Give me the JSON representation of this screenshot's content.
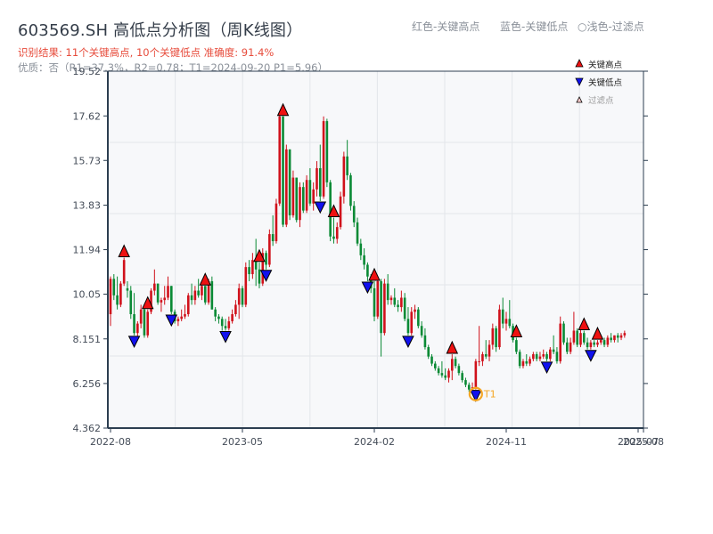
{
  "header": {
    "title": "603569.SH 高低点分析图（周K线图）",
    "result_line": "识别结果: 11个关键高点, 10个关键低点  准确度: 91.4%",
    "quality_line": "优质：否（R1=37.3%，R2=0.78；T1=2024-09-20 P1=5.96）",
    "color_legend": [
      "红色-关键高点",
      "蓝色-关键低点",
      "○浅色-过滤点"
    ]
  },
  "legend": {
    "items": [
      {
        "label": "关键高点",
        "marker": "triangle-up",
        "color": "#ee1111"
      },
      {
        "label": "关键低点",
        "marker": "triangle-down",
        "color": "#1111ee"
      },
      {
        "label": "过滤点",
        "marker": "triangle-up-hollow",
        "color": "#ffcccc"
      }
    ]
  },
  "colors": {
    "up": "#d0111b",
    "down": "#0a8a35",
    "high_marker": "#ee1111",
    "low_marker": "#1111ee",
    "t1_circle": "#f5a623",
    "axis": "#2c3e50",
    "grid": "#e3e6ea",
    "plot_bg": "#f7f8fa"
  },
  "annotation": {
    "label": "T1",
    "date": "2024-09-20",
    "price": 5.96
  },
  "chart_data": {
    "type": "candlestick",
    "title": "603569.SH 高低点分析图（周K线图）",
    "xlabel": "",
    "ylabel": "",
    "ylim": [
      4.362,
      19.52
    ],
    "y_ticks": [
      "4.362",
      "6.256",
      "8.151",
      "10.05",
      "11.94",
      "13.83",
      "15.73",
      "17.62",
      "19.52"
    ],
    "y_tick_values": [
      4.362,
      6.256,
      8.151,
      10.05,
      11.94,
      13.83,
      15.73,
      17.62,
      19.52
    ],
    "x_ticks": [
      "2022-08",
      "2023-05",
      "2024-02",
      "2024-11",
      "2025-07",
      "2025-08"
    ],
    "x_tick_index": [
      0,
      39,
      78,
      117,
      156,
      158
    ],
    "grid": true,
    "legend_position": "upper right",
    "ohlc": [
      [
        9.2,
        10.8,
        8.7,
        10.7
      ],
      [
        10.7,
        10.9,
        9.8,
        10.0
      ],
      [
        10.0,
        10.8,
        9.4,
        9.6
      ],
      [
        9.6,
        10.6,
        9.5,
        10.5
      ],
      [
        10.5,
        11.6,
        10.4,
        11.5
      ],
      [
        10.3,
        10.6,
        9.9,
        10.2
      ],
      [
        10.2,
        10.4,
        9.0,
        9.2
      ],
      [
        9.2,
        10.1,
        8.3,
        8.4
      ],
      [
        8.4,
        8.9,
        8.2,
        8.8
      ],
      [
        8.8,
        9.6,
        8.6,
        9.4
      ],
      [
        9.4,
        9.5,
        8.2,
        8.3
      ],
      [
        8.3,
        9.4,
        8.2,
        9.3
      ],
      [
        9.3,
        10.3,
        9.2,
        10.2
      ],
      [
        10.2,
        11.1,
        10.0,
        10.5
      ],
      [
        10.5,
        10.5,
        9.6,
        9.7
      ],
      [
        9.7,
        9.9,
        9.3,
        9.8
      ],
      [
        9.8,
        10.4,
        9.6,
        9.9
      ],
      [
        9.9,
        10.8,
        9.8,
        10.4
      ],
      [
        10.4,
        10.4,
        9.2,
        9.3
      ],
      [
        9.3,
        9.4,
        8.8,
        8.9
      ],
      [
        8.9,
        9.1,
        8.7,
        9.0
      ],
      [
        9.0,
        9.4,
        8.9,
        9.1
      ],
      [
        9.1,
        9.6,
        9.0,
        9.2
      ],
      [
        9.2,
        10.1,
        9.1,
        10.0
      ],
      [
        10.0,
        10.5,
        9.6,
        9.8
      ],
      [
        9.8,
        10.4,
        9.6,
        10.2
      ],
      [
        10.2,
        10.7,
        9.9,
        10.0
      ],
      [
        10.0,
        10.6,
        9.8,
        10.4
      ],
      [
        10.4,
        10.4,
        9.6,
        9.7
      ],
      [
        9.7,
        10.7,
        9.6,
        10.6
      ],
      [
        10.6,
        10.8,
        9.4,
        9.4
      ],
      [
        9.4,
        9.5,
        8.9,
        9.1
      ],
      [
        9.1,
        9.2,
        8.8,
        9.0
      ],
      [
        9.0,
        9.1,
        8.5,
        8.7
      ],
      [
        8.7,
        9.0,
        8.5,
        8.6
      ],
      [
        8.6,
        9.1,
        8.5,
        8.9
      ],
      [
        8.9,
        9.4,
        8.8,
        9.2
      ],
      [
        9.2,
        9.8,
        9.1,
        9.6
      ],
      [
        9.6,
        10.5,
        9.0,
        10.3
      ],
      [
        10.3,
        10.4,
        9.5,
        9.6
      ],
      [
        9.6,
        11.4,
        9.5,
        11.2
      ],
      [
        11.2,
        11.5,
        10.6,
        10.9
      ],
      [
        10.9,
        11.8,
        10.7,
        11.5
      ],
      [
        11.5,
        12.4,
        10.4,
        11.1
      ],
      [
        11.1,
        11.4,
        10.3,
        10.5
      ],
      [
        10.5,
        12.0,
        10.4,
        11.8
      ],
      [
        11.8,
        11.9,
        11.1,
        11.3
      ],
      [
        11.3,
        12.8,
        11.2,
        12.6
      ],
      [
        12.6,
        13.4,
        12.1,
        12.3
      ],
      [
        12.3,
        14.1,
        12.2,
        13.9
      ],
      [
        13.9,
        17.8,
        13.8,
        17.6
      ],
      [
        17.6,
        17.6,
        12.9,
        13.0
      ],
      [
        13.0,
        16.4,
        12.9,
        16.2
      ],
      [
        16.2,
        16.2,
        13.2,
        13.4
      ],
      [
        13.4,
        15.3,
        13.3,
        15.0
      ],
      [
        15.0,
        15.0,
        13.1,
        13.2
      ],
      [
        13.2,
        14.8,
        12.9,
        14.6
      ],
      [
        14.6,
        14.8,
        13.5,
        13.6
      ],
      [
        13.6,
        15.1,
        13.5,
        14.9
      ],
      [
        14.9,
        15.4,
        13.8,
        13.9
      ],
      [
        13.9,
        14.8,
        13.6,
        14.5
      ],
      [
        14.5,
        15.7,
        14.2,
        15.4
      ],
      [
        15.4,
        16.4,
        14.0,
        14.2
      ],
      [
        14.2,
        17.6,
        14.1,
        17.4
      ],
      [
        17.4,
        17.5,
        14.6,
        14.8
      ],
      [
        14.8,
        14.9,
        12.3,
        12.5
      ],
      [
        12.5,
        13.3,
        12.2,
        12.4
      ],
      [
        12.4,
        13.1,
        12.2,
        12.9
      ],
      [
        12.9,
        14.4,
        12.8,
        14.2
      ],
      [
        14.2,
        16.1,
        13.9,
        15.9
      ],
      [
        15.9,
        16.6,
        14.9,
        15.1
      ],
      [
        15.1,
        15.2,
        13.6,
        13.8
      ],
      [
        13.8,
        14.0,
        12.9,
        13.1
      ],
      [
        13.1,
        13.3,
        12.1,
        12.2
      ],
      [
        12.2,
        12.4,
        11.5,
        11.7
      ],
      [
        11.7,
        12.0,
        11.1,
        11.3
      ],
      [
        11.3,
        11.4,
        10.6,
        10.8
      ],
      [
        10.8,
        10.9,
        10.1,
        10.3
      ],
      [
        10.3,
        10.6,
        8.9,
        9.1
      ],
      [
        9.1,
        10.8,
        9.0,
        10.6
      ],
      [
        10.6,
        10.7,
        7.4,
        8.4
      ],
      [
        8.4,
        10.7,
        8.3,
        10.5
      ],
      [
        10.5,
        10.9,
        9.6,
        9.8
      ],
      [
        9.8,
        10.0,
        9.6,
        9.9
      ],
      [
        9.9,
        10.3,
        9.5,
        9.6
      ],
      [
        9.6,
        9.8,
        9.3,
        9.5
      ],
      [
        9.5,
        10.2,
        9.3,
        9.9
      ],
      [
        9.9,
        10.1,
        8.9,
        9.0
      ],
      [
        9.0,
        9.5,
        8.3,
        8.4
      ],
      [
        8.4,
        9.5,
        8.3,
        9.3
      ],
      [
        9.3,
        9.6,
        9.0,
        9.4
      ],
      [
        9.4,
        9.5,
        8.6,
        8.7
      ],
      [
        8.7,
        8.9,
        8.2,
        8.3
      ],
      [
        8.3,
        8.6,
        7.7,
        7.8
      ],
      [
        7.8,
        7.9,
        7.3,
        7.4
      ],
      [
        7.4,
        7.5,
        7.0,
        7.1
      ],
      [
        7.1,
        7.2,
        6.8,
        6.9
      ],
      [
        6.9,
        7.0,
        6.6,
        6.7
      ],
      [
        6.7,
        7.2,
        6.5,
        6.6
      ],
      [
        6.6,
        6.9,
        6.4,
        6.5
      ],
      [
        6.5,
        6.9,
        6.3,
        6.8
      ],
      [
        6.8,
        7.5,
        6.4,
        7.3
      ],
      [
        7.3,
        7.4,
        6.9,
        7.0
      ],
      [
        7.0,
        7.1,
        6.6,
        6.7
      ],
      [
        6.7,
        6.8,
        6.3,
        6.4
      ],
      [
        6.4,
        6.5,
        6.1,
        6.2
      ],
      [
        6.2,
        6.3,
        5.9,
        6.0
      ],
      [
        6.0,
        6.3,
        5.96,
        6.1
      ],
      [
        6.1,
        7.3,
        6.0,
        7.2
      ],
      [
        7.2,
        8.7,
        7.0,
        7.2
      ],
      [
        7.2,
        7.6,
        7.0,
        7.5
      ],
      [
        7.5,
        8.1,
        7.3,
        7.4
      ],
      [
        7.4,
        8.1,
        7.2,
        7.9
      ],
      [
        7.9,
        8.8,
        7.7,
        8.6
      ],
      [
        8.6,
        8.7,
        7.6,
        7.8
      ],
      [
        7.8,
        9.6,
        7.7,
        9.4
      ],
      [
        9.4,
        9.9,
        8.6,
        8.8
      ],
      [
        8.8,
        9.3,
        8.5,
        9.0
      ],
      [
        9.0,
        9.8,
        8.6,
        8.7
      ],
      [
        8.7,
        8.8,
        8.0,
        8.1
      ],
      [
        8.1,
        8.2,
        7.5,
        7.6
      ],
      [
        7.6,
        7.7,
        6.9,
        7.0
      ],
      [
        7.0,
        7.3,
        6.9,
        7.2
      ],
      [
        7.2,
        7.5,
        7.0,
        7.1
      ],
      [
        7.1,
        7.4,
        7.0,
        7.3
      ],
      [
        7.3,
        7.6,
        7.2,
        7.5
      ],
      [
        7.5,
        7.6,
        7.2,
        7.3
      ],
      [
        7.3,
        7.6,
        7.2,
        7.4
      ],
      [
        7.4,
        7.7,
        7.3,
        7.5
      ],
      [
        7.5,
        7.6,
        7.2,
        7.3
      ],
      [
        7.3,
        7.8,
        7.2,
        7.7
      ],
      [
        7.7,
        8.3,
        7.5,
        7.6
      ],
      [
        7.6,
        7.8,
        7.1,
        7.2
      ],
      [
        7.2,
        9.1,
        7.1,
        8.8
      ],
      [
        8.8,
        8.9,
        7.9,
        8.0
      ],
      [
        8.0,
        8.2,
        7.5,
        7.6
      ],
      [
        7.6,
        8.2,
        7.5,
        8.0
      ],
      [
        8.0,
        9.3,
        7.9,
        8.5
      ],
      [
        8.5,
        8.6,
        7.8,
        7.9
      ],
      [
        7.9,
        8.6,
        7.8,
        8.4
      ],
      [
        8.4,
        8.5,
        7.9,
        8.0
      ],
      [
        8.0,
        8.2,
        7.7,
        7.8
      ],
      [
        7.8,
        8.1,
        7.7,
        8.0
      ],
      [
        8.0,
        8.1,
        7.8,
        7.9
      ],
      [
        7.9,
        8.1,
        7.8,
        8.0
      ],
      [
        8.0,
        8.2,
        7.9,
        8.1
      ],
      [
        8.1,
        8.2,
        7.8,
        7.9
      ],
      [
        7.9,
        8.3,
        7.8,
        8.2
      ],
      [
        8.2,
        8.4,
        8.0,
        8.1
      ],
      [
        8.1,
        8.3,
        8.0,
        8.3
      ],
      [
        8.3,
        8.4,
        8.0,
        8.2
      ],
      [
        8.2,
        8.4,
        8.1,
        8.3
      ],
      [
        8.3,
        8.5,
        8.2,
        8.4
      ]
    ],
    "key_highs": [
      {
        "index": 4,
        "price": 11.6
      },
      {
        "index": 11,
        "price": 10.9
      },
      {
        "index": 28,
        "price": 10.5
      },
      {
        "index": 44,
        "price": 12.1
      },
      {
        "index": 51,
        "price": 17.6
      },
      {
        "index": 66,
        "price": 15.9
      },
      {
        "index": 78,
        "price": 10.6
      },
      {
        "index": 101,
        "price": 7.3
      },
      {
        "index": 120,
        "price": 9.6
      },
      {
        "index": 140,
        "price": 8.9
      },
      {
        "index": 144,
        "price": 9.1
      }
    ],
    "key_lows": [
      {
        "index": 7,
        "price": 8.2
      },
      {
        "index": 18,
        "price": 8.8
      },
      {
        "index": 34,
        "price": 8.5
      },
      {
        "index": 46,
        "price": 10.4
      },
      {
        "index": 62,
        "price": 12.2
      },
      {
        "index": 76,
        "price": 7.4
      },
      {
        "index": 88,
        "price": 8.3
      },
      {
        "index": 108,
        "price": 5.96
      },
      {
        "index": 129,
        "price": 6.9
      },
      {
        "index": 142,
        "price": 7.5
      }
    ],
    "t1": {
      "index": 108,
      "price": 5.96,
      "label": "T1"
    }
  }
}
